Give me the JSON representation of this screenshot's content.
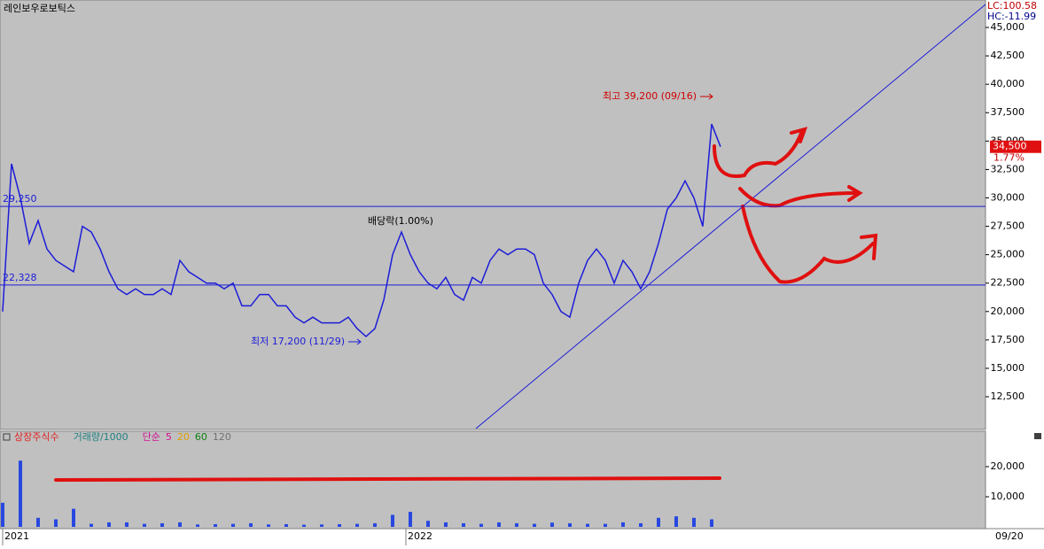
{
  "header": {
    "title": "레인보우로보틱스",
    "lc": "LC:100.58",
    "hc": "HC:-11.99",
    "date": "09/20"
  },
  "chart_data": [
    {
      "type": "line",
      "color": "#1c1cd8",
      "values": [
        20000,
        33000,
        30000,
        26000,
        28000,
        25500,
        24500,
        24000,
        23500,
        27500,
        27000,
        25500,
        23500,
        22000,
        21500,
        22000,
        21500,
        21500,
        22000,
        21500,
        24500,
        23500,
        23000,
        22500,
        22500,
        22000,
        22500,
        20500,
        20500,
        21500,
        21500,
        20500,
        20500,
        19500,
        19000,
        19500,
        19000,
        19000,
        19000,
        19500,
        18500,
        17800,
        18500,
        21000,
        25000,
        27000,
        25000,
        23500,
        22500,
        22000,
        23000,
        21500,
        21000,
        23000,
        22500,
        24500,
        25500,
        25000,
        25500,
        25500,
        25000,
        22500,
        21500,
        20000,
        19500,
        22500,
        24500,
        25500,
        24500,
        22500,
        24500,
        23500,
        22000,
        23500,
        26000,
        29000,
        30000,
        31500,
        30000,
        27500,
        36500,
        34500
      ],
      "xlim": [
        -0.3,
        110.9
      ],
      "xticks": [
        {
          "value": 0,
          "label": "2021"
        },
        {
          "value": 45.5,
          "label": "2022"
        }
      ],
      "ylim": [
        9620,
        47416
      ],
      "yticks": [
        {
          "value": 12500,
          "label": "12,500"
        },
        {
          "value": 15000,
          "label": "15,000"
        },
        {
          "value": 17500,
          "label": "17,500"
        },
        {
          "value": 20000,
          "label": "20,000"
        },
        {
          "value": 22500,
          "label": "22,500"
        },
        {
          "value": 25000,
          "label": "25,000"
        },
        {
          "value": 27500,
          "label": "27,500"
        },
        {
          "value": 30000,
          "label": "30,000"
        },
        {
          "value": 32500,
          "label": "32,500"
        },
        {
          "value": 35000,
          "label": "35,000"
        },
        {
          "value": 37500,
          "label": "37,500"
        },
        {
          "value": 40000,
          "label": "40,000"
        },
        {
          "value": 42500,
          "label": "42,500"
        },
        {
          "value": 45000,
          "label": "45,000"
        }
      ],
      "levels": [
        {
          "value": 29250,
          "label": "29,250"
        },
        {
          "value": 22328,
          "label": "22,328"
        }
      ],
      "annotations": [
        "최고 39,200 (09/16)",
        "최저 17,200 (11/29)",
        "배당락(1.00%)"
      ],
      "last_price": {
        "value": 34500,
        "label": "34,500"
      },
      "change": "1.77%"
    },
    {
      "type": "bar",
      "color": "#2848e0",
      "legend": [
        "상장주식수",
        "거래량/1000",
        "단순",
        "5",
        "20",
        "60",
        "120"
      ],
      "legend_colors": [
        "#e02020",
        "#208080",
        "#d01090",
        "#d01090",
        "#e0a000",
        "#108010",
        "#707070"
      ],
      "values": [
        8000,
        22000,
        3000,
        2500,
        6000,
        1000,
        1500,
        1500,
        1000,
        1200,
        1500,
        800,
        900,
        1000,
        1200,
        800,
        900,
        700,
        800,
        900,
        1000,
        1200,
        4000,
        5000,
        2000,
        1500,
        1200,
        1000,
        1500,
        1200,
        1000,
        1400,
        1200,
        1000,
        1000,
        1500,
        1200,
        3000,
        3500,
        3000,
        2500
      ],
      "xlim": [
        -0.3,
        110.9
      ],
      "ylim": [
        0,
        31765
      ],
      "yticks": [
        {
          "value": 10000,
          "label": "10,000"
        },
        {
          "value": 20000,
          "label": "20,000"
        }
      ]
    }
  ]
}
